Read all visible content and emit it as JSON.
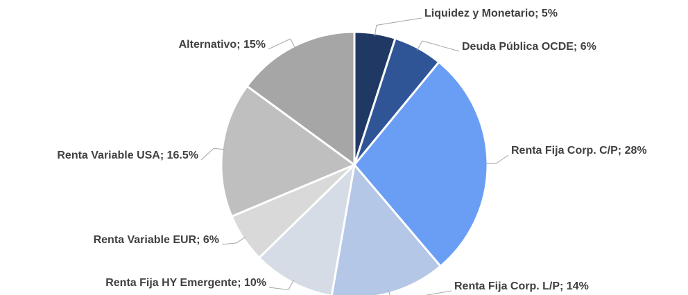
{
  "chart_data": {
    "type": "pie",
    "categories": [
      "Liquidez y Monetario; 5%",
      "Deuda Pública OCDE; 6%",
      "Renta Fija Corp. C/P; 28%",
      "Renta Fija Corp. L/P; 14%",
      "Renta Fija HY Emergente; 10%",
      "Renta Variable EUR; 6%",
      "Renta Variable USA; 16.5%",
      "Alternativo; 15%"
    ],
    "values": [
      5,
      6,
      28,
      14,
      10,
      6,
      16.5,
      15
    ],
    "colors": [
      "#203864",
      "#2f5597",
      "#6a9ef5",
      "#b4c7e7",
      "#d6dce5",
      "#d9d9d9",
      "#bfbfbf",
      "#a6a6a6"
    ]
  }
}
